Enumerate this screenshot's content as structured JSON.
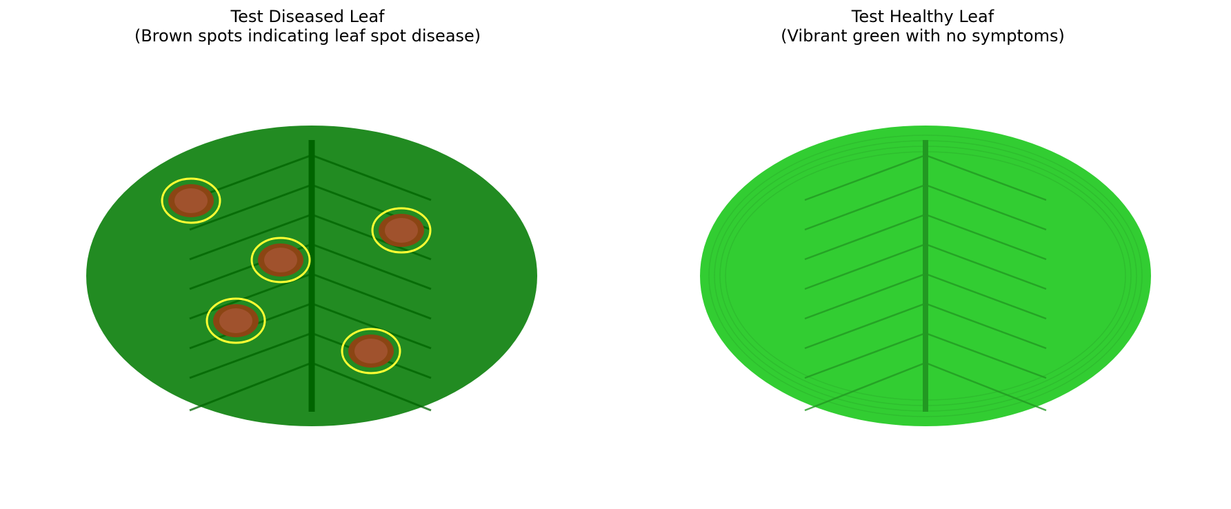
{
  "panels": [
    {
      "title": "Test Diseased Leaf",
      "subtitle": "(Brown spots indicating leaf spot disease)",
      "leaf_color": "#228B22",
      "vein_color": "#006400",
      "spot_color": "#8B4513",
      "spot_center_color": "#A0522D",
      "highlight_ring_color": "#FFFF33",
      "spot_count": 5
    },
    {
      "title": "Test Healthy Leaf",
      "subtitle": "(Vibrant green with no symptoms)",
      "leaf_color": "#32CD32",
      "vein_color": "#229922",
      "spot_count": 0
    }
  ]
}
